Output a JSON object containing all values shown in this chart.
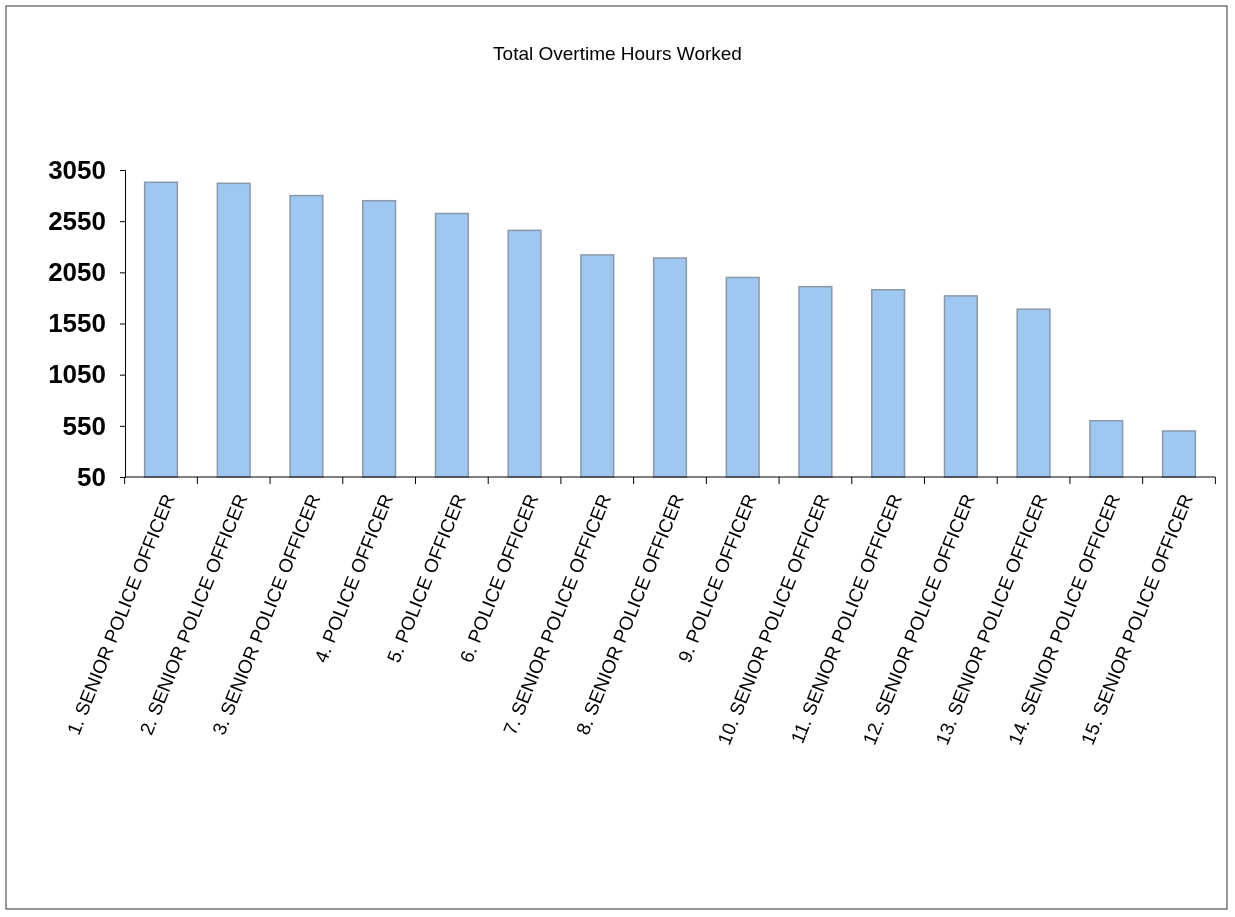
{
  "chart_data": {
    "type": "bar",
    "title": "Total Overtime Hours Worked",
    "categories": [
      "1.  SENIOR POLICE OFFICER",
      "2.  SENIOR POLICE OFFICER",
      "3.  SENIOR POLICE OFFICER",
      "4.  POLICE OFFICER",
      "5.  POLICE OFFICER",
      "6.  POLICE OFFICER",
      "7.  SENIOR POLICE OFFICER",
      "8.  SENIOR POLICE OFFICER",
      "9.  POLICE OFFICER",
      "10.  SENIOR POLICE OFFICER",
      "11.  SENIOR POLICE OFFICER",
      "12.  SENIOR POLICE OFFICER",
      "13.  SENIOR POLICE OFFICER",
      "14.  SENIOR POLICE OFFICER",
      "15.  SENIOR POLICE OFFICER"
    ],
    "values": [
      2930,
      2920,
      2800,
      2750,
      2625,
      2460,
      2220,
      2190,
      2000,
      1910,
      1880,
      1820,
      1690,
      600,
      500
    ],
    "color": "#9ec8f2",
    "ylim": [
      50,
      3050
    ],
    "yticks": [
      50,
      550,
      1050,
      1550,
      2050,
      2550,
      3050
    ],
    "grid": false
  }
}
